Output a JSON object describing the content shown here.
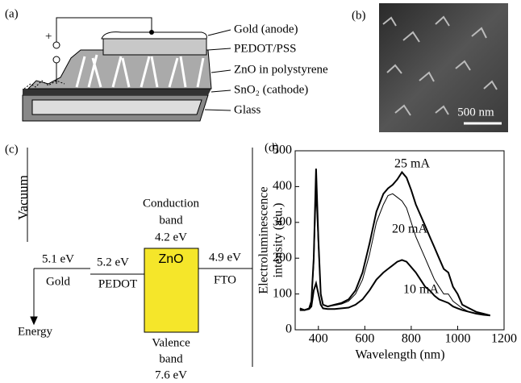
{
  "panel_a": {
    "label": "(a)",
    "plus": "+",
    "layers": [
      "Gold (anode)",
      "PEDOT/PSS",
      "ZnO in polystyrene",
      "SnO₂ (cathode)",
      "Glass"
    ]
  },
  "panel_b": {
    "label": "(b)",
    "scale": "500 nm"
  },
  "panel_c": {
    "label": "(c)",
    "vacuum": "Vacuum",
    "energy": "Energy",
    "conduction": [
      "Conduction",
      "band"
    ],
    "conduction_energy": "4.2 eV",
    "zno": "ZnO",
    "gold_energy": "5.1 eV",
    "gold": "Gold",
    "pedot_energy": "5.2 eV",
    "pedot": "PEDOT",
    "fto_energy": "4.9 eV",
    "fto": "FTO",
    "valence": [
      "Valence",
      "band"
    ],
    "valence_energy": "7.6 eV"
  },
  "chart_data": {
    "type": "line",
    "panel_label": "(d)",
    "xlabel": "Wavelength (nm)",
    "ylabel": [
      "Electroluminescence",
      "intensity (a.u.)"
    ],
    "x": [
      320,
      340,
      360,
      370,
      380,
      390,
      400,
      410,
      420,
      440,
      470,
      500,
      530,
      560,
      590,
      620,
      650,
      680,
      700,
      720,
      740,
      760,
      780,
      800,
      820,
      840,
      860,
      880,
      900,
      920,
      940,
      960,
      980,
      1000,
      1020,
      1050,
      1080,
      1110,
      1140
    ],
    "series": [
      {
        "name": "25 mA",
        "color": "#000000",
        "values": [
          60,
          55,
          60,
          80,
          200,
          450,
          250,
          100,
          70,
          65,
          70,
          75,
          85,
          110,
          160,
          240,
          330,
          380,
          395,
          405,
          420,
          440,
          425,
          390,
          350,
          320,
          290,
          260,
          230,
          200,
          170,
          160,
          120,
          100,
          70,
          60,
          50,
          45,
          40
        ]
      },
      {
        "name": "20 mA",
        "color": "#000000",
        "values": [
          55,
          55,
          60,
          75,
          180,
          380,
          230,
          95,
          70,
          65,
          68,
          72,
          80,
          100,
          140,
          210,
          300,
          350,
          375,
          380,
          370,
          360,
          340,
          300,
          260,
          230,
          200,
          170,
          140,
          120,
          100,
          100,
          80,
          70,
          60,
          50,
          45,
          42,
          40
        ]
      },
      {
        "name": "10 mA",
        "color": "#000000",
        "values": [
          55,
          55,
          58,
          65,
          110,
          130,
          100,
          70,
          60,
          58,
          58,
          60,
          62,
          70,
          85,
          110,
          140,
          160,
          170,
          180,
          190,
          195,
          190,
          175,
          160,
          140,
          120,
          110,
          95,
          85,
          80,
          75,
          65,
          60,
          55,
          50,
          45,
          42,
          40
        ]
      }
    ],
    "xlim": [
      300,
      1200
    ],
    "xticks": [
      400,
      600,
      800,
      1000,
      1200
    ],
    "ylim": [
      0,
      500
    ],
    "yticks": [
      0,
      100,
      200,
      300,
      400,
      500
    ]
  }
}
